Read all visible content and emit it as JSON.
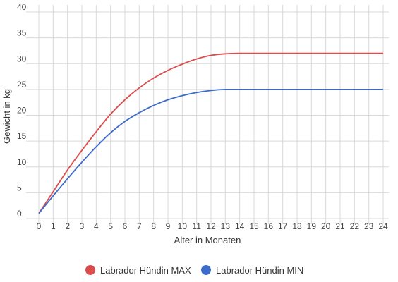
{
  "chart_data": {
    "type": "line",
    "xlabel": "Alter in Monaten",
    "ylabel": "Gewicht in kg",
    "x": [
      0,
      1,
      2,
      3,
      4,
      5,
      6,
      7,
      8,
      9,
      10,
      11,
      12,
      13,
      14,
      15,
      16,
      17,
      18,
      19,
      20,
      21,
      22,
      23,
      24
    ],
    "xlim": [
      0,
      24
    ],
    "ylim": [
      0,
      40
    ],
    "x_ticks": [
      "0",
      "1",
      "2",
      "3",
      "4",
      "5",
      "6",
      "7",
      "8",
      "9",
      "10",
      "11",
      "12",
      "13",
      "14",
      "15",
      "16",
      "17",
      "18",
      "19",
      "20",
      "21",
      "22",
      "23",
      "24"
    ],
    "y_ticks": [
      "0",
      "5",
      "10",
      "15",
      "20",
      "25",
      "30",
      "35",
      "40"
    ],
    "grid": true,
    "legend_position": "bottom",
    "series": [
      {
        "name": "Labrador Hündin MAX",
        "color": "#db4c4c",
        "values": [
          1,
          5.2,
          9.4,
          13.2,
          16.8,
          20.2,
          23.0,
          25.3,
          27.2,
          28.7,
          29.9,
          30.9,
          31.6,
          31.9,
          32,
          32,
          32,
          32,
          32,
          32,
          32,
          32,
          32,
          32,
          32
        ]
      },
      {
        "name": "Labrador Hündin MIN",
        "color": "#3d6bc9",
        "values": [
          1,
          4.4,
          7.7,
          10.9,
          13.9,
          16.6,
          18.8,
          20.5,
          21.9,
          23.0,
          23.8,
          24.4,
          24.8,
          25.0,
          25,
          25,
          25,
          25,
          25,
          25,
          25,
          25,
          25,
          25,
          25
        ]
      }
    ]
  }
}
